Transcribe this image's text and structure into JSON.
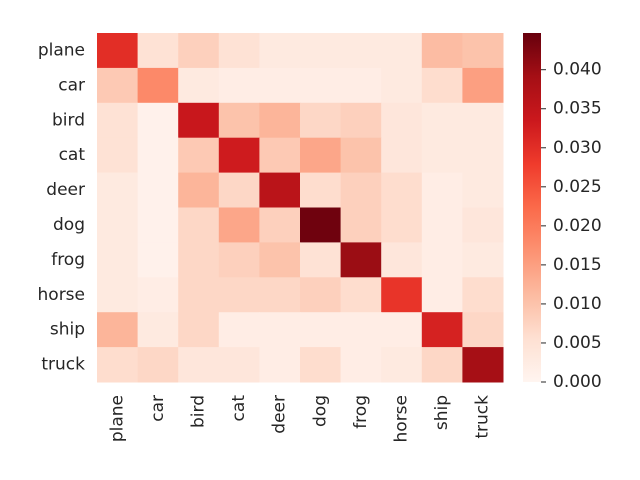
{
  "chart_data": {
    "type": "heatmap",
    "categories": [
      "plane",
      "car",
      "bird",
      "cat",
      "deer",
      "dog",
      "frog",
      "horse",
      "ship",
      "truck"
    ],
    "values": [
      [
        0.03,
        0.005,
        0.008,
        0.005,
        0.003,
        0.003,
        0.003,
        0.003,
        0.011,
        0.01
      ],
      [
        0.009,
        0.018,
        0.003,
        0.002,
        0.002,
        0.002,
        0.002,
        0.003,
        0.006,
        0.015
      ],
      [
        0.005,
        0.001,
        0.034,
        0.01,
        0.012,
        0.007,
        0.008,
        0.004,
        0.003,
        0.003
      ],
      [
        0.005,
        0.001,
        0.009,
        0.033,
        0.009,
        0.014,
        0.01,
        0.004,
        0.003,
        0.003
      ],
      [
        0.003,
        0.001,
        0.012,
        0.007,
        0.036,
        0.006,
        0.008,
        0.006,
        0.002,
        0.003
      ],
      [
        0.003,
        0.001,
        0.007,
        0.014,
        0.008,
        0.044,
        0.008,
        0.006,
        0.002,
        0.004
      ],
      [
        0.003,
        0.001,
        0.007,
        0.008,
        0.01,
        0.005,
        0.04,
        0.004,
        0.002,
        0.003
      ],
      [
        0.003,
        0.002,
        0.007,
        0.007,
        0.007,
        0.008,
        0.006,
        0.029,
        0.002,
        0.006
      ],
      [
        0.012,
        0.003,
        0.007,
        0.002,
        0.002,
        0.002,
        0.002,
        0.002,
        0.032,
        0.007
      ],
      [
        0.006,
        0.007,
        0.004,
        0.004,
        0.002,
        0.006,
        0.002,
        0.003,
        0.007,
        0.039
      ]
    ],
    "colormap": [
      "#fff5f0",
      "#fee0d2",
      "#fcbba1",
      "#fc9272",
      "#fb6a4a",
      "#ef3b2c",
      "#cb181d",
      "#a50f15",
      "#67000d"
    ],
    "zlim": [
      0,
      0.0447
    ],
    "zticks": [
      {
        "value": 0,
        "label": "0.000"
      },
      {
        "value": 0.005,
        "label": "0.005"
      },
      {
        "value": 0.01,
        "label": "0.010"
      },
      {
        "value": 0.015,
        "label": "0.015"
      },
      {
        "value": 0.02,
        "label": "0.020"
      },
      {
        "value": 0.025,
        "label": "0.025"
      },
      {
        "value": 0.03,
        "label": "0.030"
      },
      {
        "value": 0.035,
        "label": "0.035"
      },
      {
        "value": 0.04,
        "label": "0.040"
      }
    ]
  }
}
